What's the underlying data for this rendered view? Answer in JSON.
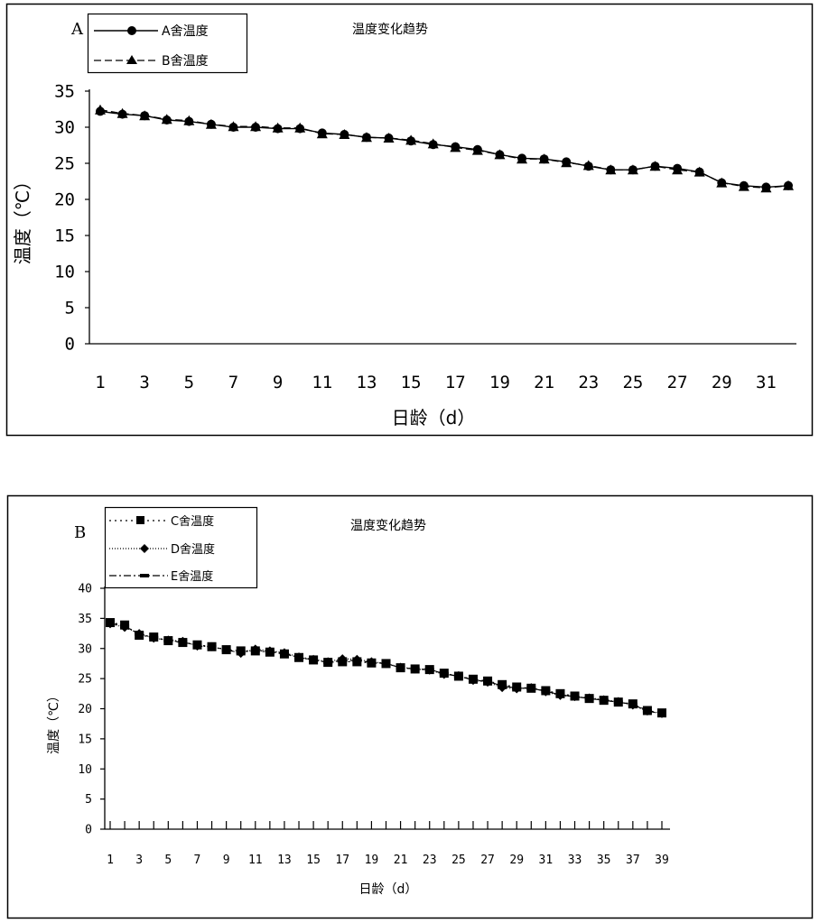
{
  "chart_data": [
    {
      "panel_label": "A",
      "type": "line",
      "title": "温度变化趋势",
      "xlabel": "日龄（d）",
      "ylabel": "温度（℃）",
      "ylim": [
        0,
        35
      ],
      "yticks": [
        0,
        5,
        10,
        15,
        20,
        25,
        30,
        35
      ],
      "xticks": [
        "1",
        "3",
        "5",
        "7",
        "9",
        "11",
        "13",
        "15",
        "17",
        "19",
        "21",
        "23",
        "25",
        "27",
        "29",
        "31"
      ],
      "x": [
        1,
        2,
        3,
        4,
        5,
        6,
        7,
        8,
        9,
        10,
        11,
        12,
        13,
        14,
        15,
        16,
        17,
        18,
        19,
        20,
        21,
        22,
        23,
        24,
        25,
        26,
        27,
        28,
        29,
        30,
        31,
        32
      ],
      "grid": false,
      "legend_position": "top-left",
      "series": [
        {
          "name": "A舍温度",
          "marker": "circle",
          "line": "solid",
          "values": [
            32.2,
            31.8,
            31.6,
            31.0,
            30.8,
            30.4,
            30.0,
            30.0,
            29.8,
            29.8,
            29.2,
            29.0,
            28.6,
            28.5,
            28.1,
            27.6,
            27.3,
            26.9,
            26.2,
            25.7,
            25.6,
            25.2,
            24.6,
            24.1,
            24.1,
            24.6,
            24.3,
            23.8,
            22.3,
            21.9,
            21.7,
            21.9
          ]
        },
        {
          "name": "B舍温度",
          "marker": "triangle",
          "line": "dashed",
          "values": [
            32.4,
            31.9,
            31.6,
            31.1,
            30.9,
            30.4,
            30.1,
            30.1,
            29.9,
            29.9,
            29.1,
            29.0,
            28.6,
            28.5,
            28.2,
            27.7,
            27.2,
            26.8,
            26.2,
            25.6,
            25.6,
            25.1,
            24.7,
            24.1,
            24.1,
            24.6,
            24.1,
            23.8,
            22.3,
            21.8,
            21.6,
            21.9
          ]
        }
      ]
    },
    {
      "panel_label": "B",
      "type": "line",
      "title": "温度变化趋势",
      "xlabel": "日龄（d）",
      "ylabel": "温度（℃）",
      "ylim": [
        0,
        40
      ],
      "yticks": [
        0,
        5,
        10,
        15,
        20,
        25,
        30,
        35,
        40
      ],
      "xticks": [
        "1",
        "3",
        "5",
        "7",
        "9",
        "11",
        "13",
        "15",
        "17",
        "19",
        "21",
        "23",
        "25",
        "27",
        "29",
        "31",
        "33",
        "35",
        "37",
        "39"
      ],
      "x": [
        1,
        2,
        3,
        4,
        5,
        6,
        7,
        8,
        9,
        10,
        11,
        12,
        13,
        14,
        15,
        16,
        17,
        18,
        19,
        20,
        21,
        22,
        23,
        24,
        25,
        26,
        27,
        28,
        29,
        30,
        31,
        32,
        33,
        34,
        35,
        36,
        37,
        38,
        39
      ],
      "grid": false,
      "legend_position": "top-left",
      "series": [
        {
          "name": "C舍温度",
          "marker": "square",
          "line": "dotted",
          "values": [
            34.3,
            33.9,
            32.2,
            31.9,
            31.3,
            31.0,
            30.6,
            30.3,
            29.8,
            29.6,
            29.6,
            29.4,
            29.1,
            28.5,
            28.1,
            27.7,
            27.8,
            27.8,
            27.6,
            27.5,
            26.8,
            26.6,
            26.5,
            25.9,
            25.4,
            24.9,
            24.6,
            24.0,
            23.6,
            23.4,
            23.0,
            22.5,
            22.1,
            21.7,
            21.4,
            21.1,
            20.8,
            19.7,
            19.3
          ]
        },
        {
          "name": "D舍温度",
          "marker": "diamond",
          "line": "dotted-fine",
          "values": [
            34.1,
            33.5,
            32.5,
            31.7,
            31.4,
            31.2,
            30.4,
            30.3,
            29.8,
            29.2,
            29.9,
            29.6,
            29.3,
            28.6,
            28.2,
            27.8,
            28.3,
            28.2,
            27.8,
            27.5,
            26.9,
            26.6,
            26.4,
            25.7,
            25.5,
            24.7,
            24.4,
            23.5,
            23.3,
            23.5,
            22.8,
            22.2,
            22.0,
            21.8,
            21.5,
            21.2,
            20.6,
            19.6,
            19.2
          ]
        },
        {
          "name": "E舍温度",
          "marker": "dash",
          "line": "dash-dot",
          "values": [
            34.2,
            33.7,
            32.4,
            31.8,
            31.3,
            31.1,
            30.5,
            30.3,
            29.7,
            29.4,
            29.7,
            29.5,
            29.2,
            28.5,
            28.1,
            27.7,
            28.0,
            28.0,
            27.7,
            27.5,
            26.8,
            26.6,
            26.5,
            25.8,
            25.4,
            24.8,
            24.5,
            23.8,
            23.4,
            23.4,
            22.9,
            22.3,
            22.0,
            21.7,
            21.4,
            21.1,
            20.7,
            19.6,
            19.2
          ]
        }
      ]
    }
  ]
}
